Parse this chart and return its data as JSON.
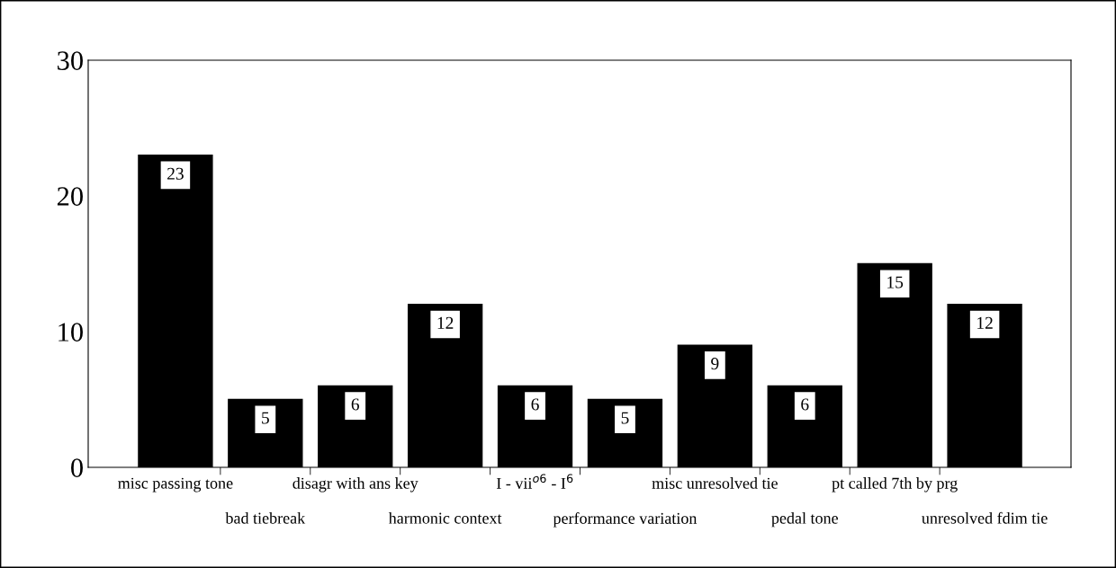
{
  "chart_data": {
    "type": "bar",
    "categories": [
      "misc passing tone",
      "bad tiebreak",
      "disagr with ans key",
      "harmonic context",
      "I - vii$^{o6}$ - I$^{6}$",
      "performance variation",
      "misc unresolved tie",
      "pedal tone",
      "pt called 7th by prg",
      "unresolved fdim tie"
    ],
    "values": [
      23,
      5,
      6,
      12,
      6,
      5,
      9,
      6,
      15,
      12
    ],
    "color": "#000000",
    "ylim": [
      0,
      30
    ],
    "yticks": [
      0,
      10,
      20,
      30
    ],
    "data_labels": true,
    "grid": false,
    "legend": false
  }
}
